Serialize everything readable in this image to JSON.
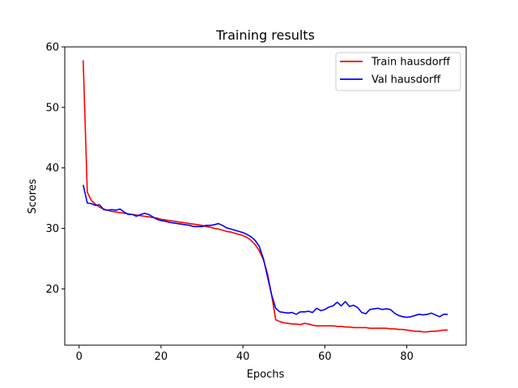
{
  "chart_data": {
    "type": "line",
    "title": "Training results",
    "xlabel": "Epochs",
    "ylabel": "Scores",
    "xlim": [
      -3.5,
      94.5
    ],
    "ylim": [
      10.7,
      60
    ],
    "xticks": [
      0,
      20,
      40,
      60,
      80
    ],
    "yticks": [
      20,
      30,
      40,
      50,
      60
    ],
    "grid": false,
    "legend_position": "top-right",
    "series": [
      {
        "name": "Train hausdorff",
        "color": "#ff0000",
        "x": [
          1,
          2,
          3,
          4,
          5,
          6,
          7,
          8,
          9,
          10,
          11,
          12,
          13,
          14,
          15,
          16,
          17,
          18,
          19,
          20,
          21,
          22,
          23,
          24,
          25,
          26,
          27,
          28,
          29,
          30,
          31,
          32,
          33,
          34,
          35,
          36,
          37,
          38,
          39,
          40,
          41,
          42,
          43,
          44,
          45,
          46,
          47,
          48,
          49,
          50,
          51,
          52,
          53,
          54,
          55,
          56,
          57,
          58,
          59,
          60,
          61,
          62,
          63,
          64,
          65,
          66,
          67,
          68,
          69,
          70,
          71,
          72,
          73,
          74,
          75,
          76,
          77,
          78,
          79,
          80,
          81,
          82,
          83,
          84,
          85,
          86,
          87,
          88,
          89,
          90
        ],
        "y": [
          57.8,
          36.0,
          34.6,
          34.0,
          33.5,
          33.2,
          33.0,
          32.8,
          32.7,
          32.6,
          32.5,
          32.4,
          32.3,
          32.2,
          32.1,
          32.0,
          31.9,
          31.8,
          31.7,
          31.5,
          31.4,
          31.3,
          31.2,
          31.1,
          31.0,
          30.9,
          30.8,
          30.7,
          30.6,
          30.5,
          30.3,
          30.2,
          30.0,
          29.9,
          29.7,
          29.5,
          29.4,
          29.2,
          29.0,
          28.8,
          28.5,
          28.0,
          27.3,
          26.3,
          24.8,
          22.5,
          19.0,
          14.9,
          14.6,
          14.4,
          14.3,
          14.2,
          14.2,
          14.1,
          14.3,
          14.2,
          14.0,
          13.9,
          13.9,
          13.9,
          13.9,
          13.9,
          13.8,
          13.8,
          13.7,
          13.7,
          13.6,
          13.6,
          13.6,
          13.6,
          13.5,
          13.5,
          13.5,
          13.5,
          13.5,
          13.4,
          13.4,
          13.3,
          13.3,
          13.2,
          13.1,
          13.0,
          13.0,
          12.9,
          12.9,
          13.0,
          13.0,
          13.1,
          13.2,
          13.2
        ]
      },
      {
        "name": "Val hausdorff",
        "color": "#0000ff",
        "x": [
          1,
          2,
          3,
          4,
          5,
          6,
          7,
          8,
          9,
          10,
          11,
          12,
          13,
          14,
          15,
          16,
          17,
          18,
          19,
          20,
          21,
          22,
          23,
          24,
          25,
          26,
          27,
          28,
          29,
          30,
          31,
          32,
          33,
          34,
          35,
          36,
          37,
          38,
          39,
          40,
          41,
          42,
          43,
          44,
          45,
          46,
          47,
          48,
          49,
          50,
          51,
          52,
          53,
          54,
          55,
          56,
          57,
          58,
          59,
          60,
          61,
          62,
          63,
          64,
          65,
          66,
          67,
          68,
          69,
          70,
          71,
          72,
          73,
          74,
          75,
          76,
          77,
          78,
          79,
          80,
          81,
          82,
          83,
          84,
          85,
          86,
          87,
          88,
          89,
          90
        ],
        "y": [
          37.2,
          34.2,
          34.1,
          33.8,
          33.9,
          33.1,
          33.0,
          33.1,
          33.0,
          33.2,
          32.7,
          32.3,
          32.3,
          32.0,
          32.3,
          32.5,
          32.3,
          31.9,
          31.5,
          31.3,
          31.2,
          31.0,
          30.9,
          30.8,
          30.7,
          30.6,
          30.5,
          30.3,
          30.3,
          30.3,
          30.5,
          30.5,
          30.6,
          30.8,
          30.5,
          30.1,
          29.9,
          29.7,
          29.5,
          29.3,
          29.0,
          28.6,
          28.0,
          27.0,
          25.0,
          22.0,
          19.0,
          16.8,
          16.2,
          16.1,
          16.0,
          16.1,
          15.8,
          16.2,
          16.2,
          16.3,
          16.1,
          16.8,
          16.4,
          16.6,
          17.0,
          17.2,
          17.8,
          17.2,
          17.9,
          17.1,
          17.3,
          16.9,
          16.1,
          15.9,
          16.6,
          16.7,
          16.8,
          16.6,
          16.7,
          16.6,
          16.0,
          15.6,
          15.4,
          15.3,
          15.4,
          15.6,
          15.8,
          15.7,
          15.8,
          16.0,
          15.7,
          15.4,
          15.8,
          15.8
        ]
      }
    ]
  }
}
